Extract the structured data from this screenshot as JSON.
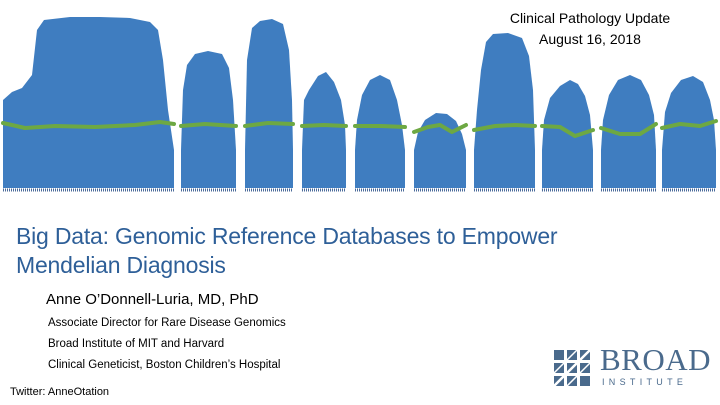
{
  "colors": {
    "peaks": "#3f7dc0",
    "coverage_line": "#6da843",
    "title": "#2e5f98",
    "logo": "#4a6a8c",
    "ticks": "#4a6a9a"
  },
  "header": {
    "conference": "Clinical Pathology Update",
    "date": "August 16, 2018"
  },
  "title": {
    "line1": "Big Data: Genomic Reference Databases to Empower",
    "line2": "Mendelian Diagnosis"
  },
  "author": "Anne O’Donnell-Luria, MD, PhD",
  "affiliations": [
    "Associate Director for Rare Disease Genomics",
    "Broad Institute of MIT and Harvard",
    "Clinical Geneticist, Boston Children’s Hospital"
  ],
  "twitter": "Twitter: AnneOtation",
  "logo": {
    "word": "BROAD",
    "sub": "INSTITUTE",
    "icon": "broad-logo-grid-icon"
  }
}
